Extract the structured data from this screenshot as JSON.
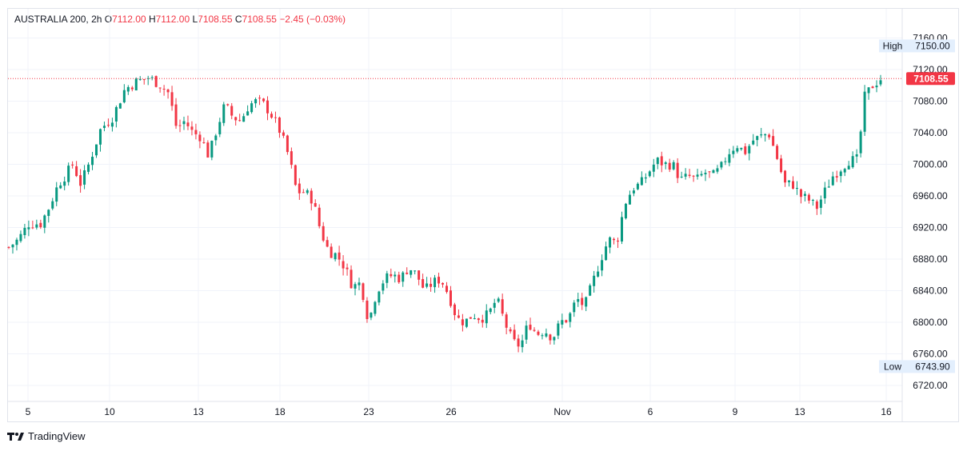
{
  "header": {
    "symbol": "AUSTRALIA 200",
    "interval": "2h",
    "open_label": "O",
    "open": "7112.00",
    "high_label": "H",
    "high": "7112.00",
    "low_label": "L",
    "low": "7108.55",
    "close_label": "C",
    "close": "7108.55",
    "change": "−2.45 (−0.03%)"
  },
  "markers": {
    "high_label": "High",
    "high_value": "7150.00",
    "low_label": "Low",
    "low_value": "6743.90",
    "last_price": "7108.55"
  },
  "colors": {
    "up": "#089981",
    "down": "#f23645",
    "grid": "#f0f3fa",
    "last": "#f23645"
  },
  "footer": {
    "brand": "TradingView"
  },
  "chart_data": {
    "type": "candlestick",
    "title": "AUSTRALIA 200, 2h",
    "y_ticks": [
      "7160.00",
      "7120.00",
      "7080.00",
      "7040.00",
      "7000.00",
      "6960.00",
      "6920.00",
      "6880.00",
      "6840.00",
      "6800.00",
      "6760.00",
      "6720.00"
    ],
    "ylim": [
      6705,
      7170
    ],
    "x_tick_labels": [
      "5",
      "10",
      "13",
      "18",
      "23",
      "26",
      "Nov",
      "6",
      "9",
      "13",
      "16"
    ],
    "close_path_anchors": [
      [
        0,
        6895
      ],
      [
        12,
        6905
      ],
      [
        25,
        6925
      ],
      [
        40,
        6925
      ],
      [
        50,
        6945
      ],
      [
        62,
        6975
      ],
      [
        70,
        6985
      ],
      [
        80,
        7000
      ],
      [
        90,
        6975
      ],
      [
        100,
        7000
      ],
      [
        115,
        7045
      ],
      [
        130,
        7060
      ],
      [
        145,
        7095
      ],
      [
        160,
        7105
      ],
      [
        175,
        7110
      ],
      [
        190,
        7100
      ],
      [
        200,
        7090
      ],
      [
        210,
        7045
      ],
      [
        220,
        7055
      ],
      [
        230,
        7040
      ],
      [
        240,
        7035
      ],
      [
        250,
        7010
      ],
      [
        260,
        7045
      ],
      [
        270,
        7075
      ],
      [
        280,
        7060
      ],
      [
        290,
        7055
      ],
      [
        300,
        7075
      ],
      [
        310,
        7080
      ],
      [
        320,
        7075
      ],
      [
        330,
        7060
      ],
      [
        340,
        7040
      ],
      [
        350,
        7010
      ],
      [
        360,
        6965
      ],
      [
        370,
        6965
      ],
      [
        380,
        6955
      ],
      [
        390,
        6915
      ],
      [
        400,
        6890
      ],
      [
        410,
        6885
      ],
      [
        420,
        6870
      ],
      [
        430,
        6845
      ],
      [
        440,
        6850
      ],
      [
        450,
        6800
      ],
      [
        460,
        6840
      ],
      [
        470,
        6855
      ],
      [
        480,
        6860
      ],
      [
        490,
        6855
      ],
      [
        500,
        6870
      ],
      [
        510,
        6860
      ],
      [
        520,
        6840
      ],
      [
        530,
        6850
      ],
      [
        540,
        6855
      ],
      [
        550,
        6835
      ],
      [
        560,
        6805
      ],
      [
        570,
        6800
      ],
      [
        580,
        6810
      ],
      [
        590,
        6805
      ],
      [
        600,
        6810
      ],
      [
        610,
        6830
      ],
      [
        620,
        6800
      ],
      [
        630,
        6775
      ],
      [
        640,
        6770
      ],
      [
        650,
        6800
      ],
      [
        660,
        6785
      ],
      [
        670,
        6790
      ],
      [
        680,
        6780
      ],
      [
        690,
        6800
      ],
      [
        700,
        6805
      ],
      [
        710,
        6830
      ],
      [
        720,
        6820
      ],
      [
        730,
        6850
      ],
      [
        740,
        6880
      ],
      [
        750,
        6905
      ],
      [
        760,
        6900
      ],
      [
        770,
        6950
      ],
      [
        780,
        6970
      ],
      [
        790,
        6975
      ],
      [
        800,
        6990
      ],
      [
        810,
        7005
      ],
      [
        820,
        7000
      ],
      [
        830,
        7000
      ],
      [
        840,
        6980
      ],
      [
        850,
        6985
      ],
      [
        860,
        6980
      ],
      [
        870,
        6990
      ],
      [
        880,
        6985
      ],
      [
        890,
        6995
      ],
      [
        900,
        7015
      ],
      [
        910,
        7025
      ],
      [
        920,
        7015
      ],
      [
        930,
        7030
      ],
      [
        940,
        7035
      ],
      [
        950,
        7040
      ],
      [
        960,
        7010
      ],
      [
        970,
        6975
      ],
      [
        980,
        6975
      ],
      [
        990,
        6960
      ],
      [
        1000,
        6955
      ],
      [
        1010,
        6945
      ],
      [
        1020,
        6965
      ],
      [
        1030,
        6985
      ],
      [
        1040,
        6995
      ],
      [
        1050,
        7005
      ],
      [
        1060,
        7005
      ],
      [
        1065,
        7040
      ],
      [
        1070,
        7085
      ],
      [
        1080,
        7100
      ],
      [
        1090,
        7108.55
      ]
    ],
    "candle_count": 220,
    "last": 7108.55,
    "high": 7150.0,
    "low": 6743.9
  }
}
